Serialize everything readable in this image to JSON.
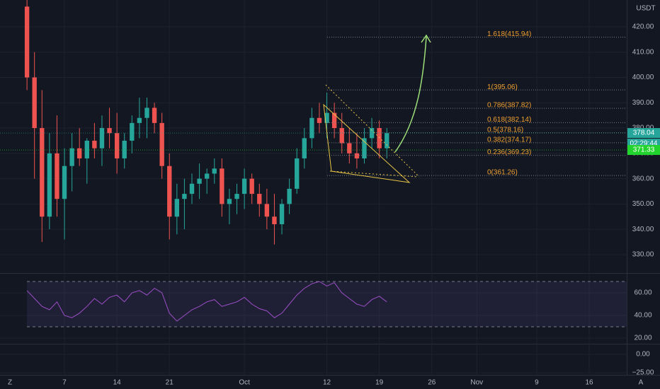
{
  "chart_data": [
    {
      "type": "candlestick",
      "currency": "USDT",
      "x": [
        2,
        3,
        4,
        5,
        6,
        7,
        8,
        9,
        10,
        11,
        12,
        13,
        14,
        15,
        16,
        17,
        18,
        19,
        20,
        21,
        22,
        23,
        24,
        25,
        26,
        27,
        28,
        29,
        30,
        31,
        32,
        33,
        34,
        35,
        36,
        37,
        38,
        39,
        40,
        41,
        42,
        43,
        44,
        45,
        46,
        47,
        48,
        49,
        50
      ],
      "open": [
        428,
        400,
        380,
        345,
        370,
        352,
        365,
        372,
        368,
        375,
        372,
        380,
        378,
        368,
        375,
        382,
        384,
        388,
        382,
        365,
        345,
        352,
        354,
        358,
        360,
        362,
        364,
        350,
        352,
        354,
        360,
        354,
        350,
        345,
        342,
        350,
        356,
        368,
        376,
        384,
        382,
        386,
        380,
        374,
        370,
        368,
        376,
        380,
        372
      ],
      "high": [
        432,
        410,
        395,
        378,
        385,
        372,
        378,
        380,
        376,
        382,
        385,
        388,
        386,
        378,
        385,
        392,
        392,
        390,
        386,
        370,
        358,
        360,
        362,
        366,
        364,
        368,
        368,
        356,
        358,
        364,
        362,
        358,
        356,
        354,
        352,
        360,
        372,
        380,
        388,
        390,
        394,
        390,
        386,
        380,
        378,
        380,
        384,
        383,
        380
      ],
      "low": [
        395,
        360,
        335,
        340,
        345,
        336,
        355,
        365,
        358,
        368,
        365,
        372,
        362,
        364,
        370,
        376,
        376,
        378,
        360,
        336,
        338,
        340,
        350,
        352,
        354,
        358,
        345,
        342,
        346,
        348,
        350,
        345,
        340,
        334,
        338,
        346,
        354,
        364,
        372,
        378,
        376,
        376,
        370,
        366,
        364,
        366,
        372,
        368,
        368
      ],
      "close": [
        400,
        380,
        345,
        370,
        352,
        365,
        372,
        368,
        375,
        372,
        380,
        378,
        368,
        375,
        382,
        384,
        388,
        382,
        365,
        345,
        352,
        354,
        358,
        360,
        362,
        364,
        350,
        352,
        354,
        360,
        354,
        350,
        345,
        342,
        350,
        356,
        368,
        376,
        384,
        382,
        386,
        380,
        374,
        370,
        368,
        376,
        380,
        372,
        378
      ],
      "up_color": "#26a69a",
      "down_color": "#ef5350",
      "xlim": [
        -1.6,
        82
      ],
      "xticks": [
        {
          "value": 7,
          "label": "7"
        },
        {
          "value": 14,
          "label": "14"
        },
        {
          "value": 21,
          "label": "21"
        },
        {
          "value": 31,
          "label": "Oct"
        },
        {
          "value": 42,
          "label": "12"
        },
        {
          "value": 49,
          "label": "19"
        },
        {
          "value": 56,
          "label": "26"
        },
        {
          "value": 62,
          "label": "Nov"
        },
        {
          "value": 70,
          "label": "9"
        },
        {
          "value": 77,
          "label": "16"
        }
      ],
      "ylim": [
        323,
        430.6
      ],
      "yticks": [
        {
          "value": 330,
          "label": "330.00"
        },
        {
          "value": 340,
          "label": "340.00"
        },
        {
          "value": 350,
          "label": "350.00"
        },
        {
          "value": 360,
          "label": "360.00"
        },
        {
          "value": 370,
          "label": "370.00"
        },
        {
          "value": 380,
          "label": "380.00"
        },
        {
          "value": 390,
          "label": "390.00"
        },
        {
          "value": 400,
          "label": "400.00"
        },
        {
          "value": 410,
          "label": "410.00"
        },
        {
          "value": 420,
          "label": "420.00"
        }
      ],
      "fib_levels": [
        {
          "value": 415.94,
          "label": "1.618(415.94)"
        },
        {
          "value": 395.06,
          "label": "1(395.06)"
        },
        {
          "value": 387.82,
          "label": "0.786(387.82)"
        },
        {
          "value": 382.14,
          "label": "0.618(382.14)"
        },
        {
          "value": 378.16,
          "label": "0.5(378.16)"
        },
        {
          "value": 374.17,
          "label": "0.382(374.17)"
        },
        {
          "value": 369.23,
          "label": "0.236(369.23)"
        },
        {
          "value": 361.26,
          "label": "0(361.26)"
        }
      ],
      "last_price": 378.04,
      "countdown": "02:29:44",
      "ma_price": 371.33
    },
    {
      "type": "line",
      "series": [
        {
          "color": "#9c4fc7",
          "values": [
            62,
            55,
            48,
            45,
            52,
            40,
            38,
            42,
            48,
            55,
            50,
            56,
            58,
            52,
            60,
            62,
            58,
            64,
            60,
            42,
            35,
            40,
            45,
            48,
            52,
            54,
            48,
            50,
            52,
            56,
            50,
            46,
            44,
            38,
            42,
            50,
            58,
            64,
            68,
            70,
            66,
            69,
            60,
            55,
            50,
            48,
            54,
            57,
            52
          ]
        }
      ],
      "ylim": [
        15,
        76.9
      ],
      "yticks": [
        {
          "value": 20,
          "label": "20.00"
        },
        {
          "value": 40,
          "label": "40.00"
        },
        {
          "value": 60,
          "label": "60.00"
        }
      ],
      "band": [
        30,
        70
      ]
    },
    {
      "type": "line",
      "ylim": [
        -27.9,
        13.5
      ],
      "yticks": [
        {
          "value": 0,
          "label": "0.00"
        },
        {
          "value": -25,
          "label": "−25.00"
        }
      ]
    }
  ]
}
